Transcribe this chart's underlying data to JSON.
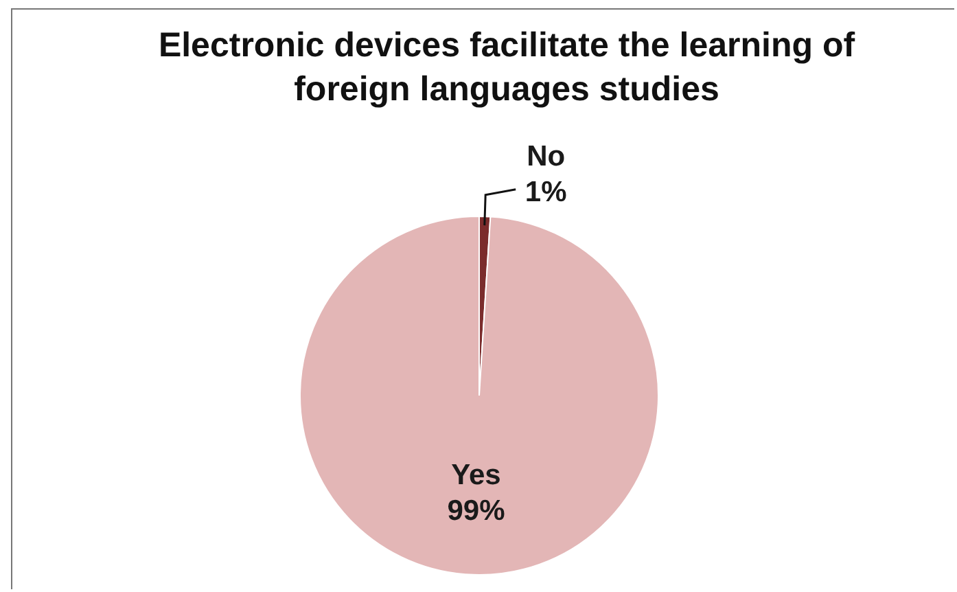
{
  "chart_data": {
    "type": "pie",
    "title": "Electronic devices facilitate the learning of foreign languages studies",
    "categories": [
      "No",
      "Yes"
    ],
    "values": [
      1,
      99
    ],
    "colors": [
      "#7b2c2c",
      "#e3b6b6"
    ],
    "value_labels": [
      "1%",
      "99%"
    ],
    "legend": false
  }
}
